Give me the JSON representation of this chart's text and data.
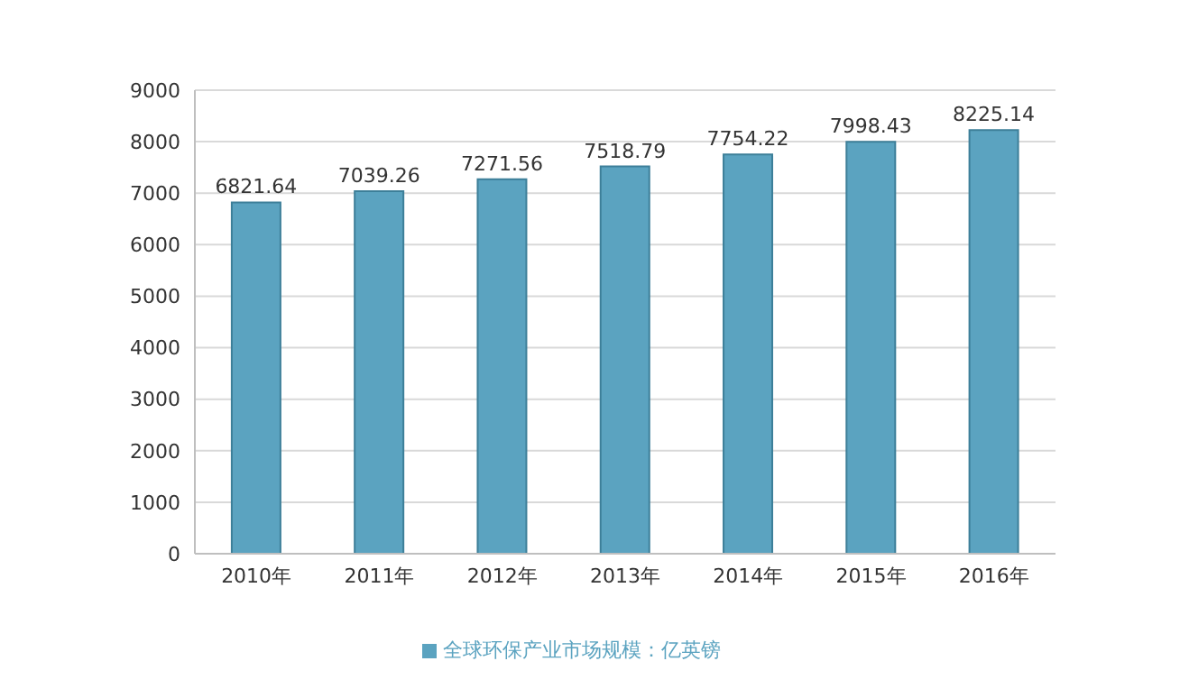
{
  "chart_data": {
    "type": "bar",
    "categories": [
      "2010年",
      "2011年",
      "2012年",
      "2013年",
      "2014年",
      "2015年",
      "2016年"
    ],
    "series": [
      {
        "name": "全球环保产业市场规模：亿英镑",
        "color": "#5ba3c0",
        "values": [
          6821.64,
          7039.26,
          7271.56,
          7518.79,
          7754.22,
          7998.43,
          8225.14
        ]
      }
    ],
    "ylim": [
      0,
      9000
    ],
    "yticks": [
      0,
      1000,
      2000,
      3000,
      4000,
      5000,
      6000,
      7000,
      8000,
      9000
    ],
    "grid": "y",
    "legend": "bottom",
    "data_labels": true
  }
}
